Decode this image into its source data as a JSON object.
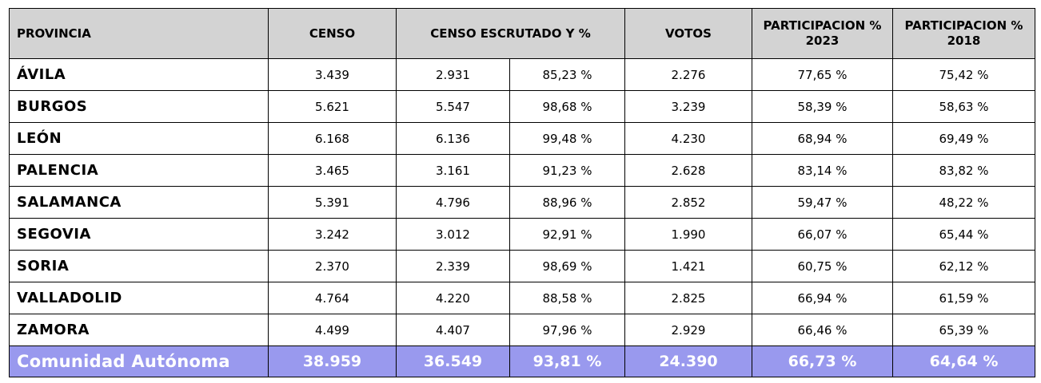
{
  "header": {
    "provincia": "PROVINCIA",
    "censo": "CENSO",
    "censo_escrutado": "CENSO ESCRUTADO  Y %",
    "votos": "VOTOS",
    "participacion_2023": "PARTICIPACION % 2023",
    "participacion_2018": "PARTICIPACION % 2018"
  },
  "rows": [
    {
      "provincia": "ÁVILA",
      "censo": "3.439",
      "escrutado": "2.931",
      "pct": "85,23 %",
      "votos": "2.276",
      "p2023": "77,65 %",
      "p2018": "75,42 %"
    },
    {
      "provincia": "BURGOS",
      "censo": "5.621",
      "escrutado": "5.547",
      "pct": "98,68 %",
      "votos": "3.239",
      "p2023": "58,39 %",
      "p2018": "58,63 %"
    },
    {
      "provincia": "LEÓN",
      "censo": "6.168",
      "escrutado": "6.136",
      "pct": "99,48 %",
      "votos": "4.230",
      "p2023": "68,94 %",
      "p2018": "69,49 %"
    },
    {
      "provincia": "PALENCIA",
      "censo": "3.465",
      "escrutado": "3.161",
      "pct": "91,23 %",
      "votos": "2.628",
      "p2023": "83,14 %",
      "p2018": "83,82 %"
    },
    {
      "provincia": "SALAMANCA",
      "censo": "5.391",
      "escrutado": "4.796",
      "pct": "88,96 %",
      "votos": "2.852",
      "p2023": "59,47 %",
      "p2018": "48,22 %"
    },
    {
      "provincia": "SEGOVIA",
      "censo": "3.242",
      "escrutado": "3.012",
      "pct": "92,91 %",
      "votos": "1.990",
      "p2023": "66,07 %",
      "p2018": "65,44 %"
    },
    {
      "provincia": "SORIA",
      "censo": "2.370",
      "escrutado": "2.339",
      "pct": "98,69 %",
      "votos": "1.421",
      "p2023": "60,75 %",
      "p2018": "62,12 %"
    },
    {
      "provincia": "VALLADOLID",
      "censo": "4.764",
      "escrutado": "4.220",
      "pct": "88,58 %",
      "votos": "2.825",
      "p2023": "66,94 %",
      "p2018": "61,59 %"
    },
    {
      "provincia": "ZAMORA",
      "censo": "4.499",
      "escrutado": "4.407",
      "pct": "97,96 %",
      "votos": "2.929",
      "p2023": "66,46 %",
      "p2018": "65,39 %"
    }
  ],
  "total": {
    "provincia": "Comunidad Autónoma",
    "censo": "38.959",
    "escrutado": "36.549",
    "pct": "93,81 %",
    "votos": "24.390",
    "p2023": "66,73 %",
    "p2018": "64,64 %"
  },
  "colors": {
    "header_bg": "#d3d3d3",
    "total_bg": "#9999ee",
    "total_text": "#ffffff"
  }
}
